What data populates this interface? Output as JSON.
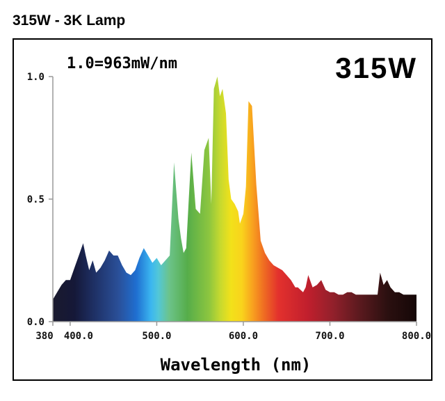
{
  "page_title": "315W - 3K Lamp",
  "chart_data": {
    "type": "area",
    "title": "315W",
    "annotation": "1.0=963mW/nm",
    "xlabel": "Wavelength (nm)",
    "ylabel": "",
    "xlim": [
      380,
      800
    ],
    "ylim": [
      0,
      1.0
    ],
    "x_ticks": [
      "380",
      "400.0",
      "500.0",
      "600.0",
      "700.0",
      "800.0"
    ],
    "y_ticks": [
      "1.0",
      "0.5",
      "0.0"
    ],
    "grid": false,
    "series": [
      {
        "x": [
          380,
          385,
          390,
          395,
          400,
          405,
          410,
          415,
          418,
          422,
          426,
          430,
          435,
          440,
          445,
          450,
          455,
          460,
          465,
          470,
          475,
          480,
          485,
          490,
          495,
          500,
          505,
          510,
          515,
          520,
          525,
          528,
          531,
          534,
          537,
          540,
          545,
          550,
          555,
          560,
          563,
          566,
          570,
          573,
          576,
          580,
          583,
          586,
          590,
          594,
          596,
          598,
          600,
          603,
          606,
          610,
          615,
          620,
          625,
          630,
          635,
          640,
          645,
          650,
          655,
          660,
          663,
          666,
          669,
          672,
          675,
          680,
          685,
          690,
          695,
          700,
          705,
          710,
          715,
          720,
          725,
          730,
          735,
          740,
          745,
          750,
          755,
          758,
          762,
          766,
          770,
          775,
          780,
          785,
          790,
          795,
          800
        ],
        "y": [
          0.09,
          0.12,
          0.15,
          0.17,
          0.17,
          0.22,
          0.27,
          0.32,
          0.27,
          0.21,
          0.25,
          0.2,
          0.22,
          0.25,
          0.29,
          0.27,
          0.27,
          0.23,
          0.2,
          0.19,
          0.21,
          0.26,
          0.3,
          0.27,
          0.24,
          0.26,
          0.23,
          0.25,
          0.27,
          0.65,
          0.42,
          0.34,
          0.28,
          0.3,
          0.5,
          0.69,
          0.46,
          0.44,
          0.7,
          0.75,
          0.48,
          0.95,
          1.0,
          0.92,
          0.95,
          0.85,
          0.58,
          0.5,
          0.48,
          0.45,
          0.4,
          0.42,
          0.44,
          0.55,
          0.9,
          0.88,
          0.56,
          0.33,
          0.28,
          0.25,
          0.23,
          0.22,
          0.21,
          0.19,
          0.17,
          0.14,
          0.14,
          0.13,
          0.12,
          0.14,
          0.19,
          0.14,
          0.15,
          0.17,
          0.13,
          0.12,
          0.12,
          0.11,
          0.11,
          0.12,
          0.12,
          0.11,
          0.11,
          0.11,
          0.11,
          0.11,
          0.11,
          0.2,
          0.15,
          0.17,
          0.14,
          0.12,
          0.12,
          0.11,
          0.11,
          0.11,
          0.11
        ]
      }
    ],
    "colors": {
      "frame": "#000000",
      "axis": "#999999"
    }
  }
}
